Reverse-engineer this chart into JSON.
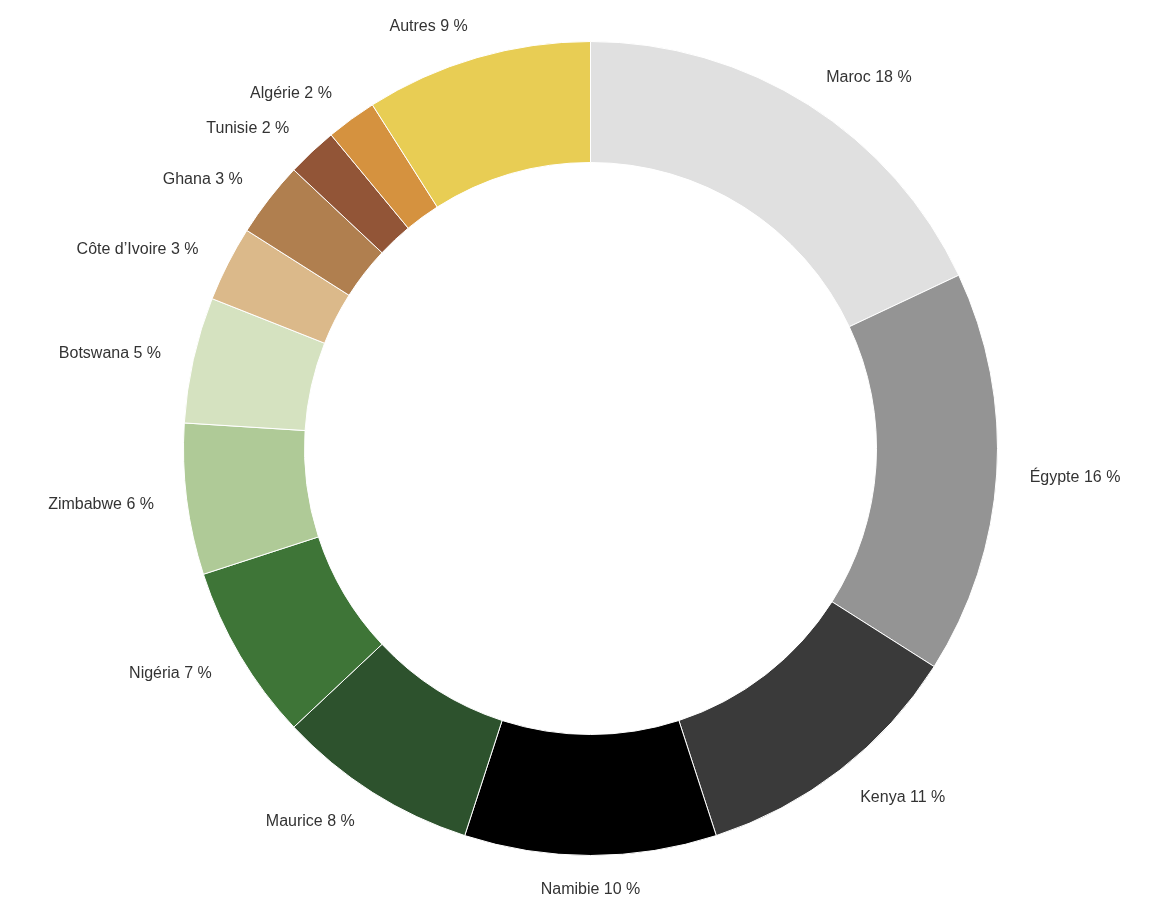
{
  "chart_data": {
    "type": "donut",
    "categories": [
      "Maroc",
      "Égypte",
      "Kenya",
      "Namibie",
      "Maurice",
      "Nigéria",
      "Zimbabwe",
      "Botswana",
      "Côte d’Ivoire",
      "Ghana",
      "Tunisie",
      "Algérie",
      "Autres"
    ],
    "values": [
      18,
      16,
      11,
      10,
      8,
      7,
      6,
      5,
      3,
      3,
      2,
      2,
      9
    ],
    "value_labels": [
      "18 %",
      "16 %",
      "11 %",
      "10 %",
      "8 %",
      "7 %",
      "6 %",
      "5 %",
      "3 %",
      "3 %",
      "2 %",
      "2 %",
      "9 %"
    ],
    "colors": [
      "#e0e0e0",
      "#949494",
      "#3a3a3a",
      "#000000",
      "#2d522d",
      "#3e7537",
      "#afca97",
      "#d5e2c0",
      "#dbb98a",
      "#b07f4f",
      "#925537",
      "#d5923f",
      "#e8cd54"
    ]
  }
}
